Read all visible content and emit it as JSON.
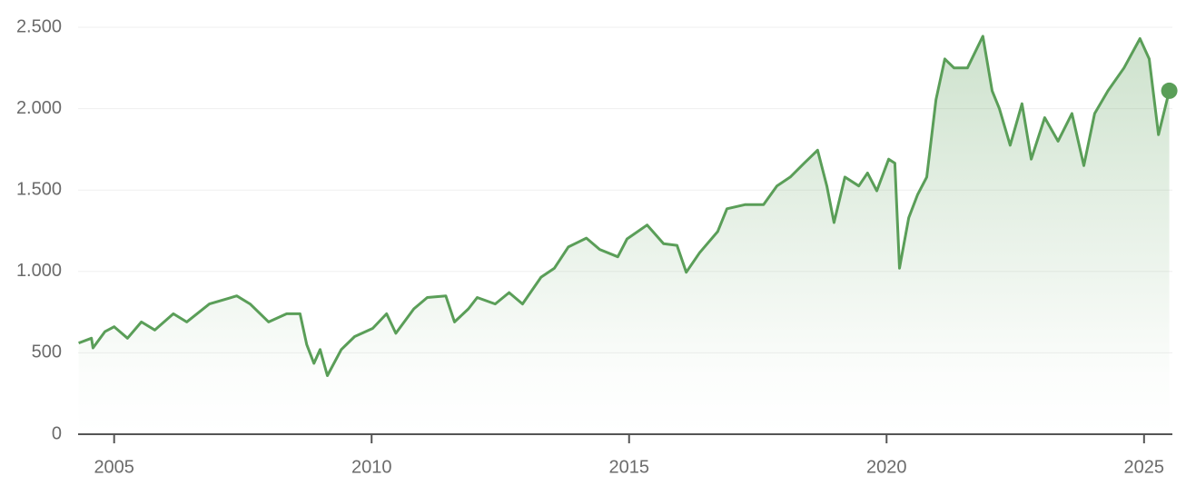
{
  "chart_data": {
    "type": "line",
    "color": "#5a9e58",
    "x": [
      2004.31,
      2004.56,
      2004.59,
      2004.82,
      2005.0,
      2005.26,
      2005.53,
      2005.79,
      2006.15,
      2006.41,
      2006.85,
      2007.38,
      2007.64,
      2008.0,
      2008.35,
      2008.61,
      2008.74,
      2008.88,
      2009.0,
      2009.14,
      2009.41,
      2009.67,
      2010.02,
      2010.29,
      2010.47,
      2010.82,
      2011.08,
      2011.44,
      2011.61,
      2011.88,
      2012.05,
      2012.4,
      2012.67,
      2012.93,
      2013.29,
      2013.55,
      2013.82,
      2014.17,
      2014.43,
      2014.78,
      2014.96,
      2015.35,
      2015.67,
      2015.93,
      2016.11,
      2016.37,
      2016.72,
      2016.9,
      2017.25,
      2017.61,
      2017.87,
      2018.13,
      2018.4,
      2018.66,
      2018.84,
      2018.98,
      2019.19,
      2019.46,
      2019.63,
      2019.81,
      2020.04,
      2020.16,
      2020.25,
      2020.43,
      2020.6,
      2020.78,
      2020.96,
      2021.13,
      2021.31,
      2021.57,
      2021.87,
      2022.05,
      2022.19,
      2022.4,
      2022.63,
      2022.81,
      2023.07,
      2023.33,
      2023.6,
      2023.83,
      2024.04,
      2024.3,
      2024.61,
      2024.92,
      2025.1,
      2025.28,
      2025.49
    ],
    "values": [
      560,
      590,
      530,
      630,
      660,
      590,
      690,
      640,
      740,
      690,
      800,
      850,
      800,
      690,
      740,
      740,
      550,
      435,
      520,
      360,
      520,
      600,
      650,
      740,
      620,
      770,
      840,
      850,
      690,
      770,
      840,
      800,
      870,
      800,
      965,
      1020,
      1150,
      1205,
      1135,
      1090,
      1200,
      1285,
      1170,
      1160,
      995,
      1115,
      1245,
      1385,
      1410,
      1410,
      1525,
      1580,
      1665,
      1745,
      1525,
      1300,
      1580,
      1525,
      1605,
      1495,
      1690,
      1665,
      1020,
      1330,
      1470,
      1580,
      2055,
      2305,
      2250,
      2250,
      2445,
      2110,
      2000,
      1775,
      2030,
      1690,
      1945,
      1800,
      1970,
      1650,
      1970,
      2110,
      2250,
      2430,
      2305,
      1840,
      2110
    ],
    "xlim": [
      2004.3,
      2025.55
    ],
    "xticks": [
      2005,
      2010,
      2015,
      2020,
      2025
    ],
    "ylim": [
      0,
      2500
    ],
    "yticks": [
      0,
      500,
      {
        "value": 1000,
        "label": "1.000"
      },
      {
        "value": 1500,
        "label": "1.500"
      },
      {
        "value": 2000,
        "label": "2.000"
      },
      {
        "value": 2500,
        "label": "2.500"
      }
    ],
    "grid": true
  }
}
